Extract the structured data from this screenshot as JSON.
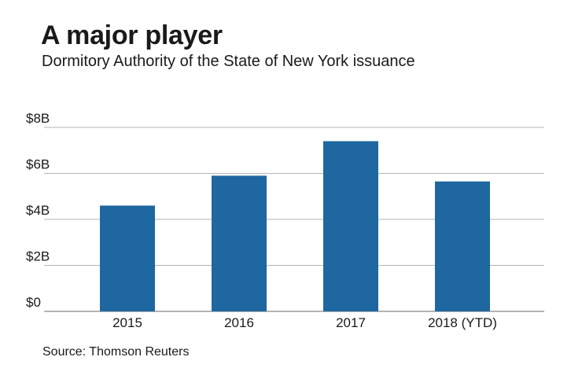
{
  "header": {
    "title": "A major player",
    "subtitle": "Dormitory Authority of the State of New York issuance"
  },
  "footer": {
    "source": "Source: Thomson Reuters"
  },
  "colors": {
    "bar": "#1f67a0",
    "grid": "#b5b5b5",
    "axis": "#888888"
  },
  "chart_data": {
    "type": "bar",
    "title": "A major player",
    "subtitle": "Dormitory Authority of the State of New York issuance",
    "categories": [
      "2015",
      "2016",
      "2017",
      "2018 (YTD)"
    ],
    "values": [
      4.6,
      5.9,
      7.4,
      5.65
    ],
    "unit": "billions of dollars",
    "ylim": [
      0,
      8
    ],
    "yticks": [
      0,
      2,
      4,
      6,
      8
    ],
    "ytick_labels": [
      "$0",
      "$2B",
      "$4B",
      "$6B",
      "$8B"
    ],
    "xlabel": "",
    "ylabel": "",
    "grid": true,
    "legend": "none"
  }
}
